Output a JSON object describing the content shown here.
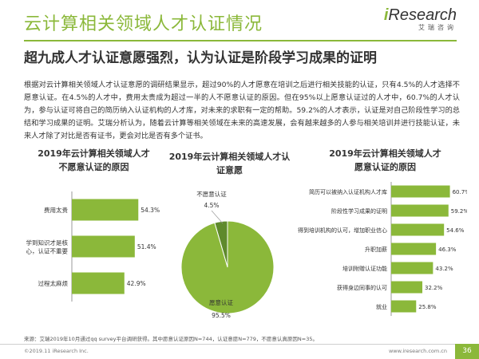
{
  "header": {
    "title": "云计算相关领域人才认证情况",
    "subtitle": "超九成人才认证意愿强烈，认为认证是阶段学习成果的证明",
    "logo_prefix": "i",
    "logo_main": "Research",
    "logo_sub": "艾瑞咨询"
  },
  "body_text": "根据对云计算相关领域人才认证意愿的调研结果显示，超过90%的人才愿意在培训之后进行相关技能的认证，只有4.5%的人才选择不愿意认证。在4.5%的人才中，费用太贵成为超过一半的人不愿意认证的原因。但在95%以上愿意认证过的人才中，60.7%的人才认为，参与认证可将自己的简历纳入认证机构的人才库，对未来的求职有一定的帮助。59.2%的人才表示，认证是对自己阶段性学习的总结和学习成果的证明。艾瑞分析认为，随着云计算等相关领域在未来的高速发展，会有越来越多的人参与相关培训并进行技能认证，未来人才除了对比是否有证书，更会对比是否有多个证书。",
  "colors": {
    "accent": "#8bb83a",
    "pie_minor": "#5f8a2c",
    "pie_stroke": "#ffffff"
  },
  "chart_data": [
    {
      "type": "bar",
      "title": "2019年云计算相关领域人才不愿意认证的原因",
      "title_lines": [
        "2019年云计算相关领域人才",
        "不愿意认证的原因"
      ],
      "categories": [
        "费用太贵",
        "学到知识才是核心，认证不重要",
        "过程太麻烦"
      ],
      "category_lines": [
        [
          "费用太贵"
        ],
        [
          "学到知识才是核",
          "心，认证不重要"
        ],
        [
          "过程太麻烦"
        ]
      ],
      "values": [
        54.3,
        51.4,
        42.9
      ],
      "value_labels": [
        "54.3%",
        "51.4%",
        "42.9%"
      ],
      "xlim": [
        0,
        60
      ]
    },
    {
      "type": "pie",
      "title": "2019年云计算相关领域人才认证意愿",
      "title_lines": [
        "2019年云计算相关领域人才认",
        "证意愿"
      ],
      "labels": [
        "不愿意认证",
        "愿意认证"
      ],
      "values": [
        4.5,
        95.5
      ],
      "value_labels": [
        "4.5%",
        "95.5%"
      ]
    },
    {
      "type": "bar",
      "title": "2019年云计算相关领域人才愿意认证的原因",
      "title_lines": [
        "2019年云计算相关领域人才",
        "愿意认证的原因"
      ],
      "categories": [
        "简历可以被纳入认证机构人才库",
        "阶段性学习成果的证明",
        "得到培训机构的认可，增加职业信心",
        "升职加薪",
        "培训附赠认证功能",
        "获得身边同事的认可",
        "就业"
      ],
      "values": [
        60.7,
        59.2,
        54.6,
        46.3,
        43.2,
        32.2,
        25.8
      ],
      "value_labels": [
        "60.7%",
        "59.2%",
        "54.6%",
        "46.3%",
        "43.2%",
        "32.2%",
        "25.8%"
      ],
      "xlim": [
        0,
        66
      ]
    }
  ],
  "footer": {
    "source": "来源：艾瑞2019年10月通过qq survey平台调研获得。其中愿意认证原因N=744，认证意愿N=779，不愿意认真原因N=35。",
    "copyright": "©2019.11 iResearch Inc.",
    "url": "www.iresearch.com.cn",
    "page": "36"
  }
}
